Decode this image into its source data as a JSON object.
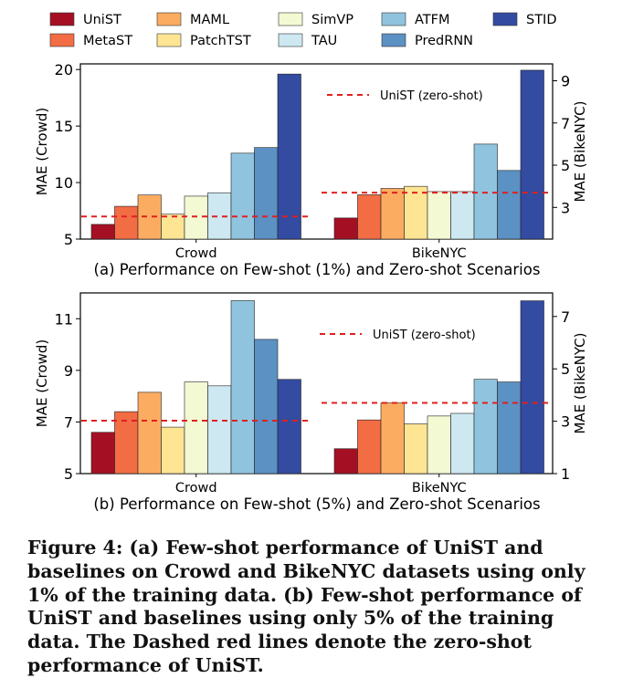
{
  "legend": {
    "items": [
      {
        "name": "UniST",
        "color": "#a50f24"
      },
      {
        "name": "MetaST",
        "color": "#f26c44"
      },
      {
        "name": "MAML",
        "color": "#fbac61"
      },
      {
        "name": "PatchTST",
        "color": "#fde594"
      },
      {
        "name": "SimVP",
        "color": "#f3f9d3"
      },
      {
        "name": "TAU",
        "color": "#cde8f1"
      },
      {
        "name": "ATFM",
        "color": "#90c4de"
      },
      {
        "name": "PredRNN",
        "color": "#5b91c3"
      },
      {
        "name": "STID",
        "color": "#334ba0"
      }
    ]
  },
  "chart_data": [
    {
      "type": "bar",
      "title": "(a) Performance on Few-shot (1%) and Zero-shot Scenarios",
      "categories": [
        "Crowd",
        "BikeNYC"
      ],
      "ylabel_left": "MAE (Crowd)",
      "ylabel_right": "MAE (BikeNYC)",
      "ylim_left": [
        5,
        20.5
      ],
      "ylim_right": [
        1.5,
        9.8
      ],
      "yticks_left": [
        5,
        10,
        15,
        20
      ],
      "yticks_right": [
        3,
        5,
        7,
        9
      ],
      "zero_shot_label": "UniST (zero-shot)",
      "zero_shot": {
        "Crowd": 7.0,
        "BikeNYC": 3.7
      },
      "series": [
        {
          "name": "UniST",
          "values": [
            6.3,
            2.5
          ]
        },
        {
          "name": "MetaST",
          "values": [
            7.9,
            3.6
          ]
        },
        {
          "name": "MAML",
          "values": [
            8.9,
            3.9
          ]
        },
        {
          "name": "PatchTST",
          "values": [
            7.2,
            4.0
          ]
        },
        {
          "name": "SimVP",
          "values": [
            8.8,
            3.75
          ]
        },
        {
          "name": "TAU",
          "values": [
            9.1,
            3.75
          ]
        },
        {
          "name": "ATFM",
          "values": [
            12.6,
            6.0
          ]
        },
        {
          "name": "PredRNN",
          "values": [
            13.1,
            4.75
          ]
        },
        {
          "name": "STID",
          "values": [
            19.6,
            9.5
          ]
        }
      ]
    },
    {
      "type": "bar",
      "title": "(b) Performance on Few-shot (5%) and Zero-shot Scenarios",
      "categories": [
        "Crowd",
        "BikeNYC"
      ],
      "ylabel_left": "MAE (Crowd)",
      "ylabel_right": "MAE (BikeNYC)",
      "ylim_left": [
        5,
        12
      ],
      "ylim_right": [
        1,
        7.9
      ],
      "yticks_left": [
        5,
        7,
        9,
        11
      ],
      "yticks_right": [
        1,
        3,
        5,
        7
      ],
      "zero_shot_label": "UniST (zero-shot)",
      "zero_shot": {
        "Crowd": 7.05,
        "BikeNYC": 3.7
      },
      "series": [
        {
          "name": "UniST",
          "values": [
            6.6,
            1.95
          ]
        },
        {
          "name": "MetaST",
          "values": [
            7.4,
            3.05
          ]
        },
        {
          "name": "MAML",
          "values": [
            8.15,
            3.7
          ]
        },
        {
          "name": "PatchTST",
          "values": [
            6.8,
            2.9
          ]
        },
        {
          "name": "SimVP",
          "values": [
            8.55,
            3.2
          ]
        },
        {
          "name": "TAU",
          "values": [
            8.4,
            3.3
          ]
        },
        {
          "name": "ATFM",
          "values": [
            11.7,
            4.6
          ]
        },
        {
          "name": "PredRNN",
          "values": [
            10.2,
            4.5
          ]
        },
        {
          "name": "STID",
          "values": [
            8.65,
            7.6
          ]
        }
      ]
    }
  ],
  "caption": "Figure 4: (a) Few-shot performance of UniST and baselines on Crowd and BikeNYC datasets using only 1% of the training data. (b) Few-shot performance of UniST and baselines using only 5% of the training data. The Dashed red lines denote the zero-shot performance of UniST."
}
